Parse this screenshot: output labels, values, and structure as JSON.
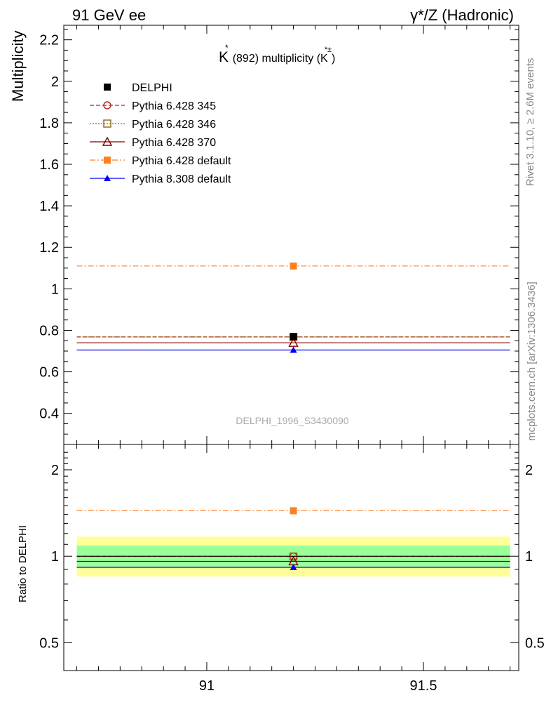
{
  "header": {
    "left": "91 GeV ee",
    "right": "γ*/Z (Hadronic)"
  },
  "side_text": {
    "rivet": "Rivet 3.1.10, ≥ 2.6M events",
    "mcplots": "mcplots.cern.ch [arXiv:1306.3436]"
  },
  "watermark": "DELPHI_1996_S3430090",
  "title": {
    "main": "K",
    "sup": "*",
    "rest": "(892) multiplicity (K",
    "sup2": "*±",
    "close": ")"
  },
  "chart_data": [
    {
      "type": "line",
      "ylabel": "Multiplicity",
      "xlim": [
        90.67,
        91.72
      ],
      "ylim": [
        0.25,
        2.27
      ],
      "y_ticks": [
        "0.4",
        "0.6",
        "0.8",
        "1",
        "1.2",
        "1.4",
        "1.6",
        "1.8",
        "2",
        "2.2"
      ],
      "x_point": 91.2,
      "x_range": [
        90.7,
        91.7
      ],
      "legend_position": "top-left",
      "series": [
        {
          "name": "DELPHI",
          "value": 0.77,
          "color": "#000000",
          "marker": "filled-square",
          "line": "none"
        },
        {
          "name": "Pythia 6.428 345",
          "value": 0.768,
          "color": "#b22222",
          "marker": "open-circle",
          "line": "dashed"
        },
        {
          "name": "Pythia 6.428 346",
          "value": 0.768,
          "color": "#8b6914",
          "marker": "open-square",
          "line": "dotted"
        },
        {
          "name": "Pythia 6.428 370",
          "value": 0.74,
          "color": "#800000",
          "marker": "open-triangle",
          "line": "solid"
        },
        {
          "name": "Pythia 6.428 default",
          "value": 1.11,
          "color": "#ff7f24",
          "marker": "filled-square",
          "line": "dashdot"
        },
        {
          "name": "Pythia 8.308 default",
          "value": 0.705,
          "color": "#0000ee",
          "marker": "filled-triangle",
          "line": "solid"
        }
      ]
    },
    {
      "type": "line",
      "ylabel": "Ratio to DELPHI",
      "xlim": [
        90.67,
        91.72
      ],
      "ylim": [
        0.4,
        2.45
      ],
      "log_y": true,
      "y_ticks": [
        "0.5",
        "1",
        "2"
      ],
      "x_ticks": [
        "91",
        "91.5"
      ],
      "bands": [
        {
          "low": 0.85,
          "high": 1.17,
          "color": "#ffff99"
        },
        {
          "low": 0.92,
          "high": 1.09,
          "color": "#99ff99"
        }
      ],
      "series": [
        {
          "name": "DELPHI",
          "value": 1.0,
          "color": "#000000",
          "line": "solid"
        },
        {
          "name": "Pythia 6.428 345",
          "value": 0.998,
          "color": "#b22222",
          "marker": "open-circle",
          "line": "dashed"
        },
        {
          "name": "Pythia 6.428 346",
          "value": 0.998,
          "color": "#8b6914",
          "marker": "open-square",
          "line": "dotted"
        },
        {
          "name": "Pythia 6.428 370",
          "value": 0.96,
          "color": "#800000",
          "marker": "open-triangle",
          "line": "solid"
        },
        {
          "name": "Pythia 6.428 default",
          "value": 1.44,
          "color": "#ff7f24",
          "marker": "filled-square",
          "line": "dashdot"
        },
        {
          "name": "Pythia 8.308 default",
          "value": 0.915,
          "color": "#0000ee",
          "marker": "filled-triangle",
          "line": "solid"
        }
      ]
    }
  ]
}
